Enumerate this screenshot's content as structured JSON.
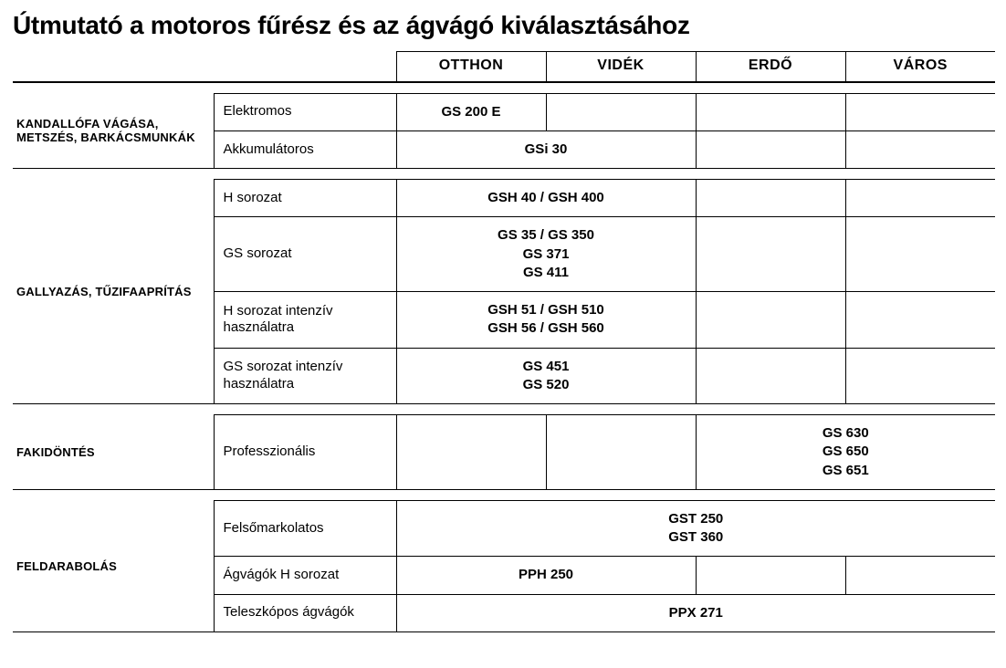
{
  "title": "Útmutató a motoros fűrész és az ágvágó kiválasztásához",
  "headers": {
    "c1": "OTTHON",
    "c2": "VIDÉK",
    "c3": "ERDŐ",
    "c4": "VÁROS"
  },
  "cat1": {
    "label": "KANDALLÓFA VÁGÁSA, METSZÉS, BARKÁCSMUNKÁK",
    "r0": {
      "sub": "Elektromos",
      "p": "GS 200 E"
    },
    "r1": {
      "sub": "Akkumulátoros",
      "p": "GSi 30"
    }
  },
  "cat2": {
    "label": "GALLYAZÁS, TŰZIFAAPRÍTÁS",
    "r0": {
      "sub": "H sorozat",
      "p": "GSH 40 / GSH 400"
    },
    "r1": {
      "sub": "GS sorozat",
      "p": "GS 35 / GS 350\nGS 371\nGS 411"
    },
    "r2": {
      "sub": "H sorozat intenzív használatra",
      "p": "GSH 51 / GSH 510\nGSH 56 / GSH 560"
    },
    "r3": {
      "sub": "GS sorozat intenzív használatra",
      "p": "GS 451\nGS 520"
    }
  },
  "cat3": {
    "label": "FAKIDÖNTÉS",
    "r0": {
      "sub": "Professzionális",
      "p": "GS 630\nGS 650\nGS 651"
    }
  },
  "cat4": {
    "label": "FELDARABOLÁS",
    "r0": {
      "sub": "Felsőmarkolatos",
      "p": "GST 250\nGST 360"
    },
    "r1": {
      "sub": "Ágvágók H sorozat",
      "p": "PPH 250"
    },
    "r2": {
      "sub": "Teleszkópos ágvágók",
      "p": "PPX 271"
    }
  }
}
